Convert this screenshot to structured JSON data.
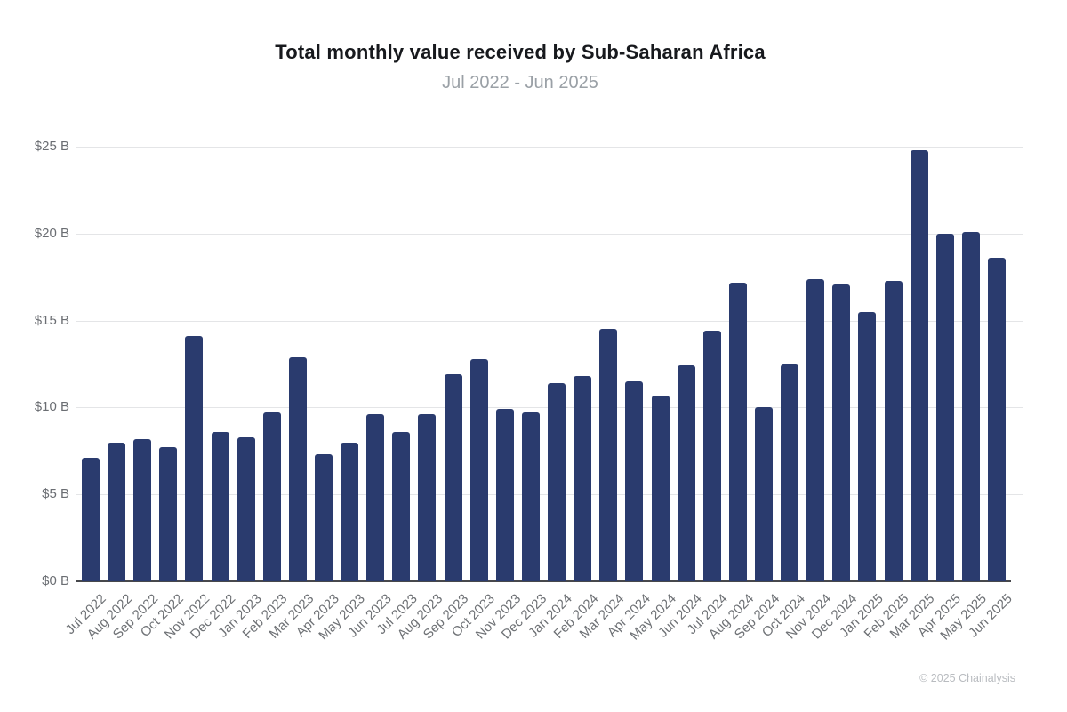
{
  "header": {
    "title": "Total monthly value received by Sub-Saharan Africa",
    "subtitle": "Jul 2022 - Jun 2025"
  },
  "footer": {
    "copyright": "© 2025 Chainalysis"
  },
  "colors": {
    "bar": "#2a3b6e",
    "gridline": "#e4e5e7",
    "axis_line": "#47484c",
    "title": "#17191d",
    "subtitle": "#9aa0a6",
    "tick_label": "#6b6e73",
    "footer": "#b9bcc0",
    "background": "#ffffff"
  },
  "chart_data": {
    "type": "bar",
    "title": "Total monthly value received by Sub-Saharan Africa",
    "subtitle": "Jul 2022 - Jun 2025",
    "xlabel": "",
    "ylabel": "",
    "unit": "USD billions",
    "ylim": [
      0,
      25
    ],
    "ytick_step": 5,
    "ytick_labels": [
      "$0 B",
      "$5 B",
      "$10 B",
      "$15 B",
      "$20 B",
      "$25 B"
    ],
    "grid": true,
    "legend": false,
    "categories": [
      "Jul 2022",
      "Aug 2022",
      "Sep 2022",
      "Oct 2022",
      "Nov 2022",
      "Dec 2022",
      "Jan 2023",
      "Feb 2023",
      "Mar 2023",
      "Apr 2023",
      "May 2023",
      "Jun 2023",
      "Jul 2023",
      "Aug 2023",
      "Sep 2023",
      "Oct 2023",
      "Nov 2023",
      "Dec 2023",
      "Jan 2024",
      "Feb 2024",
      "Mar 2024",
      "Apr 2024",
      "May 2024",
      "Jun 2024",
      "Jul 2024",
      "Aug 2024",
      "Sep 2024",
      "Oct 2024",
      "Nov 2024",
      "Dec 2024",
      "Jan 2025",
      "Feb 2025",
      "Mar 2025",
      "Apr 2025",
      "May 2025",
      "Jun 2025"
    ],
    "values": [
      7.1,
      8.0,
      8.2,
      7.7,
      14.1,
      8.6,
      8.3,
      9.7,
      12.9,
      7.3,
      8.0,
      9.6,
      8.6,
      9.6,
      11.9,
      12.8,
      9.9,
      9.7,
      11.4,
      11.8,
      14.5,
      11.5,
      10.7,
      12.4,
      14.4,
      17.2,
      10.0,
      12.5,
      17.4,
      17.1,
      15.5,
      17.3,
      24.8,
      20.0,
      20.1,
      18.6
    ]
  }
}
